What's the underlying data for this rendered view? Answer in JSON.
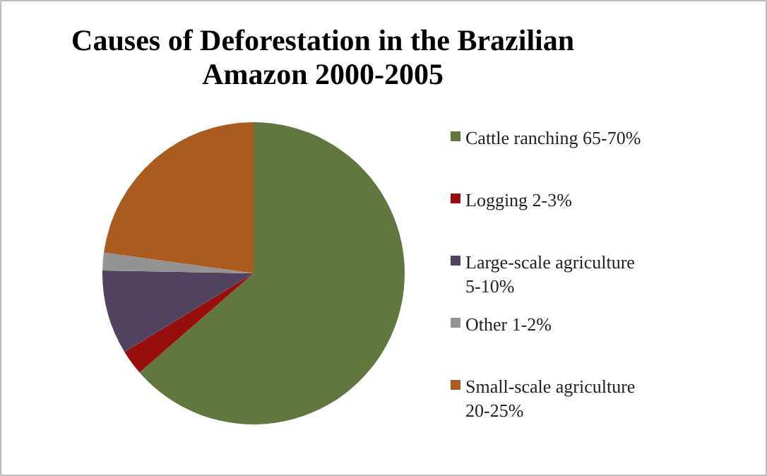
{
  "chart_data": {
    "type": "pie",
    "title": "Causes of Deforestation in the Brazilian Amazon 2000-2005",
    "categories": [
      "Cattle ranching 65-70%",
      "Logging 2-3%",
      "Large-scale agriculture 5-10%",
      "Other 1-2%",
      "Small-scale agriculture 20-25%"
    ],
    "values": [
      63.6,
      2.7,
      9.0,
      1.9,
      22.8
    ],
    "colors": [
      "#61773f",
      "#960e0e",
      "#51425f",
      "#939393",
      "#aa5b20"
    ],
    "legend": "right"
  }
}
